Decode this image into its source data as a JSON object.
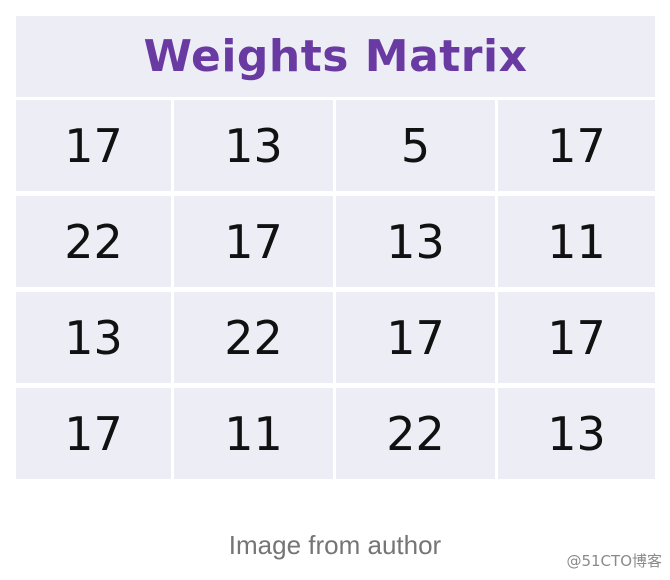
{
  "matrix": {
    "title": "Weights Matrix",
    "rows": [
      [
        "17",
        "13",
        "5",
        "17"
      ],
      [
        "22",
        "17",
        "13",
        "11"
      ],
      [
        "13",
        "22",
        "17",
        "17"
      ],
      [
        "17",
        "11",
        "22",
        "13"
      ]
    ]
  },
  "caption": "Image from author",
  "watermark": "@51CTO博客",
  "colors": {
    "title_text": "#6a3aa3",
    "cell_background": "#ededf5",
    "cell_text": "#111111",
    "caption_text": "#757575"
  }
}
